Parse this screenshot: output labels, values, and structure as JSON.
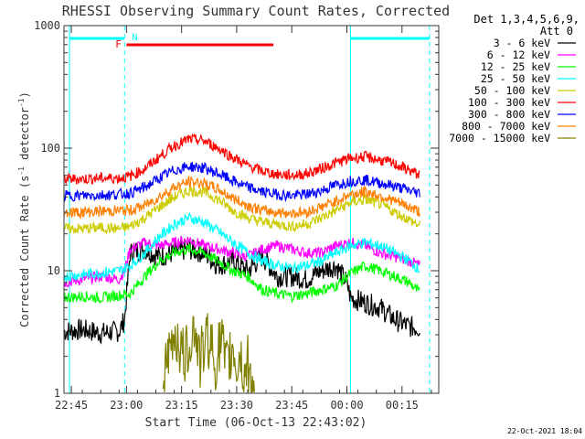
{
  "chart_data": {
    "type": "line",
    "title": "RHESSI Observing Summary Count Rates, Corrected",
    "xlabel": "Start Time (06-Oct-13 22:43:02)",
    "ylabel_main": "Corrected Count Rate (s",
    "ylabel_sup1": "-1",
    "ylabel_mid": " detector",
    "ylabel_sup2": "-1",
    "ylabel_end": ")",
    "y_scale": "log",
    "ylim": [
      1,
      1000
    ],
    "xlim_minutes": [
      0,
      102
    ],
    "x_ticks": [
      {
        "label": "22:45",
        "min": 2
      },
      {
        "label": "23:00",
        "min": 17
      },
      {
        "label": "23:15",
        "min": 32
      },
      {
        "label": "23:30",
        "min": 47
      },
      {
        "label": "23:45",
        "min": 62
      },
      {
        "label": "00:00",
        "min": 77
      },
      {
        "label": "00:15",
        "min": 92
      }
    ],
    "y_ticks": [
      {
        "label": "1",
        "value": 1
      },
      {
        "label": "10",
        "value": 10
      },
      {
        "label": "100",
        "value": 100
      },
      {
        "label": "1000",
        "value": 1000
      }
    ],
    "legend_header": [
      "Det 1,3,4,5,6,9,",
      "Att 0"
    ],
    "series": [
      {
        "name": "3 - 6 keV",
        "color": "#000000",
        "x": [
          0,
          5,
          10,
          15,
          16.5,
          18,
          22,
          26,
          30,
          34,
          38,
          42,
          46,
          50,
          54,
          58,
          62,
          66,
          70,
          74,
          77,
          78,
          82,
          86,
          90,
          94,
          97
        ],
        "values": [
          3.2,
          3.3,
          3.1,
          3.2,
          4,
          14,
          15,
          13,
          14,
          15,
          14,
          11,
          12,
          10,
          13,
          9,
          9,
          8.5,
          10,
          11,
          8,
          6,
          5.5,
          5,
          4,
          3.5,
          3.4
        ]
      },
      {
        "name": "6 - 12 keV",
        "color": "#ff00ff",
        "x": [
          0,
          5,
          10,
          15,
          16.5,
          18,
          22,
          26,
          30,
          34,
          38,
          42,
          46,
          50,
          54,
          58,
          62,
          66,
          70,
          74,
          78,
          82,
          86,
          90,
          94,
          97
        ],
        "values": [
          8,
          8.5,
          9,
          8.5,
          10,
          15,
          17,
          16,
          17,
          18,
          16,
          15,
          14,
          13,
          15,
          16,
          15,
          14,
          14,
          16,
          17,
          16,
          14,
          13,
          12,
          11
        ]
      },
      {
        "name": "12 - 25 keV",
        "color": "#00ff00",
        "x": [
          0,
          5,
          10,
          15,
          18,
          22,
          26,
          30,
          34,
          38,
          42,
          46,
          50,
          54,
          58,
          62,
          66,
          70,
          74,
          78,
          82,
          86,
          90,
          94,
          97
        ],
        "values": [
          6,
          6.2,
          6,
          6.3,
          6.5,
          9,
          12,
          14,
          15,
          14,
          12,
          10,
          9,
          7,
          6.5,
          6.2,
          6.5,
          7,
          7.5,
          9.5,
          11,
          10,
          9,
          8,
          6.5
        ]
      },
      {
        "name": "25 - 50 keV",
        "color": "#00ffff",
        "x": [
          0,
          5,
          10,
          15,
          18,
          22,
          26,
          30,
          34,
          38,
          42,
          46,
          50,
          54,
          58,
          62,
          66,
          70,
          74,
          78,
          82,
          86,
          90,
          94,
          97
        ],
        "values": [
          9,
          9.3,
          9.6,
          10,
          11,
          14,
          19,
          24,
          27,
          25,
          21,
          17,
          14,
          12,
          11,
          10.5,
          11,
          12,
          14,
          16,
          17,
          16,
          14,
          12,
          10
        ]
      },
      {
        "name": "50 - 100 keV",
        "color": "#cccc00",
        "x": [
          0,
          5,
          10,
          15,
          18,
          22,
          26,
          30,
          34,
          38,
          42,
          46,
          50,
          54,
          58,
          62,
          66,
          70,
          74,
          78,
          82,
          86,
          90,
          94,
          97
        ],
        "values": [
          22,
          22,
          22.5,
          22,
          23,
          27,
          33,
          40,
          45,
          44,
          38,
          31,
          27,
          25,
          24,
          23,
          24,
          27,
          31,
          36,
          38,
          35,
          30,
          26,
          23
        ]
      },
      {
        "name": "100 - 300 keV",
        "color": "#ff0000",
        "x": [
          0,
          5,
          10,
          15,
          18,
          22,
          26,
          30,
          34,
          38,
          42,
          46,
          50,
          54,
          58,
          62,
          66,
          70,
          74,
          78,
          82,
          86,
          90,
          94,
          97
        ],
        "values": [
          56,
          56,
          57,
          57,
          59,
          68,
          85,
          105,
          118,
          115,
          100,
          84,
          72,
          65,
          61,
          60,
          62,
          68,
          76,
          83,
          85,
          80,
          74,
          66,
          60
        ]
      },
      {
        "name": "300 - 800 keV",
        "color": "#0000ff",
        "x": [
          0,
          5,
          10,
          15,
          18,
          22,
          26,
          30,
          34,
          38,
          42,
          46,
          50,
          54,
          58,
          62,
          66,
          70,
          74,
          78,
          82,
          86,
          90,
          94,
          97
        ],
        "values": [
          41,
          41,
          41.5,
          42,
          43,
          48,
          57,
          66,
          71,
          69,
          62,
          54,
          48,
          44,
          42,
          41,
          42,
          45,
          50,
          54,
          55,
          52,
          49,
          45,
          43
        ]
      },
      {
        "name": "800 - 7000 keV",
        "color": "#ff8000",
        "x": [
          0,
          5,
          10,
          15,
          18,
          22,
          26,
          30,
          34,
          38,
          42,
          46,
          50,
          54,
          58,
          62,
          66,
          70,
          74,
          78,
          82,
          86,
          90,
          94,
          97
        ],
        "values": [
          30,
          30,
          30.5,
          31,
          31,
          34,
          40,
          48,
          53,
          52,
          46,
          39,
          34,
          31,
          30,
          29.5,
          30,
          33,
          37,
          42,
          44,
          41,
          37,
          33,
          30
        ]
      },
      {
        "name": "7000 - 15000 keV",
        "color": "#808000",
        "x": [
          27,
          28,
          29,
          30,
          31,
          32,
          33,
          34,
          35,
          36,
          37,
          38,
          39,
          40,
          41,
          42,
          43,
          44,
          45,
          46,
          47,
          48,
          49,
          50,
          51,
          52
        ],
        "values": [
          1.2,
          1.6,
          2.2,
          3.1,
          2.8,
          2.1,
          1.9,
          2.5,
          3.4,
          3.0,
          1.8,
          2.3,
          2.9,
          2.6,
          1.7,
          2.2,
          2.8,
          1.5,
          1.9,
          2.4,
          1.6,
          2.1,
          1.3,
          1.8,
          1.2,
          1.1
        ]
      }
    ],
    "flags": [
      {
        "label": "F",
        "color": "#ff0000"
      },
      {
        "label": "N",
        "color": "#00ffff"
      }
    ],
    "footer_date": "22-Oct-2021 18:04"
  }
}
